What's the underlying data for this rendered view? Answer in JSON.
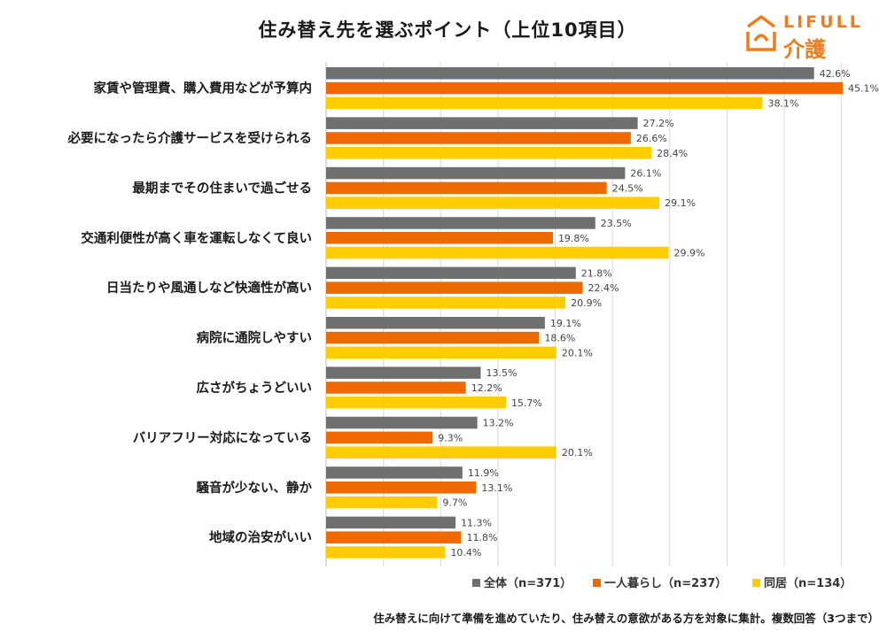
{
  "title": "住み替え先を選ぶポイント（上位10項目）",
  "logo": {
    "brand": "LIFULL",
    "sub": "介護"
  },
  "footnote": "住み替えに向けて準備を進めていたり、住み替えの意欲がある方を対象に集計。複数回答（3つまで）",
  "chart_data": {
    "type": "bar",
    "orientation": "horizontal",
    "categories": [
      "家賃や管理費、購入費用などが予算内",
      "必要になったら介護サービスを受けられる",
      "最期までその住まいで過ごせる",
      "交通利便性が高く車を運転しなくて良い",
      "日当たりや風通しなど快適性が高い",
      "病院に通院しやすい",
      "広さがちょうどいい",
      "バリアフリー対応になっている",
      "騒音が少ない、静か",
      "地域の治安がいい"
    ],
    "series": [
      {
        "name": "全体（n=371）",
        "color": "#6f6f6f",
        "values": [
          42.6,
          27.2,
          26.1,
          23.5,
          21.8,
          19.1,
          13.5,
          13.2,
          11.9,
          11.3
        ]
      },
      {
        "name": "一人暮らし（n=237）",
        "color": "#ee6a00",
        "values": [
          45.1,
          26.6,
          24.5,
          19.8,
          22.4,
          18.6,
          12.2,
          9.3,
          13.1,
          11.8
        ]
      },
      {
        "name": "同居（n=134）",
        "color": "#ffcc00",
        "values": [
          38.1,
          28.4,
          29.1,
          29.9,
          20.9,
          20.1,
          15.7,
          20.1,
          9.7,
          10.4
        ]
      }
    ],
    "value_suffix": "%",
    "xlim": [
      0,
      45
    ],
    "grid": true,
    "legend_position": "bottom-right"
  }
}
